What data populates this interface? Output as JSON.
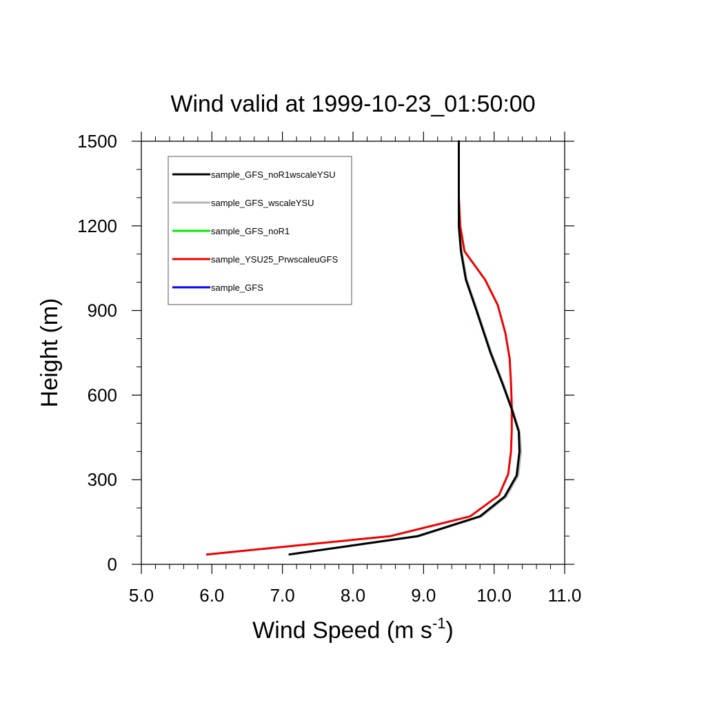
{
  "chart_data": {
    "type": "line",
    "title": "Wind valid at 1999-10-23_01:50:00",
    "xlabel": {
      "base": "Wind Speed (m s",
      "sup": "-1",
      "tail": ")"
    },
    "ylabel": "Height (m)",
    "xlim": [
      5.0,
      11.0
    ],
    "ylim": [
      0,
      1500
    ],
    "x_ticks": [
      5.0,
      6.0,
      7.0,
      8.0,
      9.0,
      10.0,
      11.0
    ],
    "x_tick_labels": [
      "5.0",
      "6.0",
      "7.0",
      "8.0",
      "9.0",
      "10.0",
      "11.0"
    ],
    "y_ticks": [
      0,
      300,
      600,
      900,
      1200,
      1500
    ],
    "y_tick_labels": [
      "0",
      "300",
      "600",
      "900",
      "1200",
      "1500"
    ],
    "legend_position": "top-left",
    "series": [
      {
        "name": "sample_GFS_noR1wscaleYSU",
        "color": "#000000",
        "x": [
          7.1,
          8.92,
          9.8,
          10.15,
          10.32,
          10.36,
          10.35,
          10.25,
          10.12,
          9.95,
          9.75,
          9.6,
          9.53,
          9.5,
          9.5,
          9.5,
          9.5
        ],
        "y": [
          35,
          100,
          170,
          240,
          315,
          400,
          470,
          550,
          640,
          750,
          900,
          1010,
          1110,
          1200,
          1300,
          1400,
          1500
        ]
      },
      {
        "name": "sample_GFS_wscaleYSU",
        "color": "#b4b4b4",
        "x": [
          7.12,
          8.94,
          9.82,
          10.17,
          10.34,
          10.38,
          10.36,
          10.26,
          10.13,
          9.96,
          9.76,
          9.61,
          9.54,
          9.51,
          9.5,
          9.5,
          9.5
        ],
        "y": [
          35,
          100,
          170,
          240,
          315,
          400,
          470,
          550,
          640,
          750,
          900,
          1010,
          1110,
          1200,
          1300,
          1400,
          1500
        ]
      },
      {
        "name": "sample_GFS_noR1",
        "color": "#00ee00",
        "x": [
          7.1,
          8.92,
          9.8,
          10.15,
          10.32,
          10.36,
          10.35,
          10.25,
          10.12,
          9.95,
          9.75,
          9.6,
          9.53,
          9.5,
          9.5,
          9.5,
          9.5
        ],
        "y": [
          35,
          100,
          170,
          240,
          315,
          400,
          470,
          550,
          640,
          750,
          900,
          1010,
          1110,
          1200,
          1300,
          1400,
          1500
        ]
      },
      {
        "name": "sample_YSU25_PrwscaleuGFS",
        "color": "#ee0000",
        "x": [
          5.93,
          8.53,
          9.66,
          10.07,
          10.2,
          10.24,
          10.25,
          10.25,
          10.24,
          10.22,
          10.16,
          10.05,
          9.87,
          9.58,
          9.52,
          9.5,
          9.5,
          9.5
        ],
        "y": [
          35,
          100,
          170,
          245,
          320,
          400,
          480,
          560,
          640,
          730,
          820,
          920,
          1010,
          1110,
          1200,
          1300,
          1400,
          1500
        ]
      },
      {
        "name": "sample_GFS",
        "color": "#0000ee",
        "x": [
          7.1,
          8.92,
          9.8,
          10.15,
          10.32,
          10.36,
          10.35,
          10.25,
          10.12,
          9.95,
          9.75,
          9.6,
          9.53,
          9.5,
          9.5,
          9.5,
          9.5
        ],
        "y": [
          35,
          100,
          170,
          240,
          315,
          400,
          470,
          550,
          640,
          750,
          900,
          1010,
          1110,
          1200,
          1300,
          1400,
          1500
        ]
      }
    ]
  }
}
